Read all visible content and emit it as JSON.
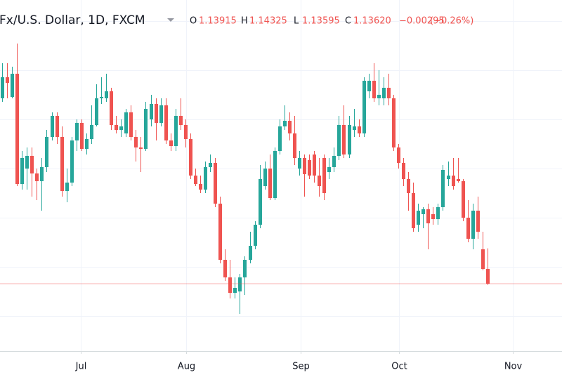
{
  "chart_data": {
    "type": "candlestick",
    "title": "Fx/U.S. Dollar, 1D, FXCM",
    "ohlc": [
      {
        "key": "O",
        "value": "1.13915"
      },
      {
        "key": "H",
        "value": "1.14325"
      },
      {
        "key": "L",
        "value": "1.13595"
      },
      {
        "key": "C",
        "value": "1.13620"
      }
    ],
    "change": "−0.00295",
    "change_pct": "(−0.26%)",
    "up_color": "#26a69a",
    "down_color": "#ef5350",
    "last_price_line": true,
    "ylim": [
      1.12276,
      1.19276
    ],
    "ygrid": [
      1.18856,
      1.17876,
      1.16896,
      1.15916,
      1.14936,
      1.13956,
      1.12976
    ],
    "xlim": [
      -0.43,
      113.05
    ],
    "xticks": [
      {
        "value": 15.9,
        "label": "Jul"
      },
      {
        "value": 37.2,
        "label": "Aug"
      },
      {
        "value": 60.3,
        "label": "Sep"
      },
      {
        "value": 80.1,
        "label": "Oct"
      },
      {
        "value": 103.1,
        "label": "Nov"
      }
    ],
    "categories": [
      null,
      null,
      null,
      null,
      null,
      null,
      null,
      null,
      null,
      null,
      null,
      null,
      null,
      null,
      null,
      null,
      null,
      null,
      null,
      null,
      null,
      null,
      null,
      null,
      null,
      null,
      null,
      null,
      null,
      null,
      null,
      null,
      null,
      null,
      null,
      null,
      null,
      null,
      null,
      null,
      null,
      null,
      null,
      null,
      null,
      null,
      null,
      null,
      null,
      null,
      null,
      null,
      null,
      null,
      null,
      null,
      null,
      null,
      null,
      null,
      null,
      null,
      null,
      null,
      null,
      null,
      null,
      null,
      null,
      null,
      null,
      null,
      null,
      null,
      null,
      null,
      null,
      null,
      null,
      null,
      null,
      null,
      null,
      null,
      null,
      null,
      null,
      null,
      null,
      null,
      null,
      null,
      null,
      null,
      null,
      null,
      null,
      null,
      null
    ],
    "open": [
      1.17316,
      1.17736,
      1.17344,
      1.17806,
      1.15608,
      1.15916,
      1.16168,
      1.15818,
      1.15664,
      1.15944,
      1.16546,
      1.16966,
      1.16546,
      1.15468,
      1.15636,
      1.16476,
      1.16826,
      1.16308,
      1.16504,
      1.16784,
      1.17316,
      1.17316,
      1.17456,
      1.16784,
      1.16686,
      1.16616,
      1.17036,
      1.16546,
      1.16336,
      1.16308,
      1.16896,
      1.17204,
      1.16826,
      1.17176,
      1.16476,
      1.16364,
      1.16966,
      1.16784,
      1.16504,
      1.15776,
      1.15608,
      1.15496,
      1.15944,
      1.16028,
      1.15216,
      1.14096,
      1.13746,
      1.13438,
      1.13466,
      1.13746,
      1.14096,
      1.14376,
      1.14796,
      1.15566,
      1.15916,
      1.15328,
      1.16266,
      1.16756,
      1.16868,
      1.16616,
      1.15916,
      1.16126,
      1.16084,
      1.16196,
      1.15776,
      1.16126,
      1.15846,
      1.15944,
      1.16168,
      1.16784,
      1.16196,
      1.16686,
      1.16756,
      1.16616,
      1.17456,
      1.17666,
      1.17316,
      1.17316,
      1.17526,
      1.17316,
      1.16336,
      1.16028,
      1.15706,
      1.15426,
      1.14796,
      1.15006,
      1.15104,
      1.15006,
      1.14908,
      1.15146,
      1.15706,
      1.15776,
      1.15706,
      1.15664,
      1.14936,
      1.14516,
      1.15076,
      1.14306,
      1.13915
    ],
    "high": [
      1.18016,
      1.18016,
      1.17946,
      1.18408,
      1.16266,
      1.16336,
      1.16336,
      1.15916,
      1.16126,
      1.16686,
      1.17036,
      1.17036,
      1.16756,
      1.15916,
      1.16546,
      1.16896,
      1.16896,
      1.16616,
      1.17176,
      1.17596,
      1.17736,
      1.17806,
      1.17526,
      1.16966,
      1.16896,
      1.17106,
      1.17176,
      1.16686,
      1.16546,
      1.17246,
      1.17386,
      1.17316,
      1.17316,
      1.17316,
      1.16616,
      1.17106,
      1.17316,
      1.16896,
      1.16616,
      1.15916,
      1.15776,
      1.16056,
      1.16196,
      1.16126,
      1.15356,
      1.14306,
      1.14096,
      1.13746,
      1.13816,
      1.14166,
      1.14656,
      1.14866,
      1.15986,
      1.16056,
      1.16196,
      1.16336,
      1.16896,
      1.17176,
      1.17036,
      1.16966,
      1.16266,
      1.16196,
      1.16196,
      1.16266,
      1.16126,
      1.16196,
      1.16126,
      1.16336,
      1.16966,
      1.17176,
      1.16966,
      1.17106,
      1.16896,
      1.17736,
      1.17806,
      1.18016,
      1.17876,
      1.17736,
      1.17806,
      1.17386,
      1.16406,
      1.16126,
      1.15846,
      1.15636,
      1.15216,
      1.15146,
      1.15216,
      1.15146,
      1.15216,
      1.15986,
      1.16056,
      1.16126,
      1.16126,
      1.15706,
      1.15286,
      1.15216,
      1.15356,
      1.14656,
      1.14325
    ],
    "low": [
      1.17246,
      1.17316,
      1.17316,
      1.15566,
      1.15496,
      1.15496,
      1.15356,
      1.15286,
      1.15076,
      1.15846,
      1.16476,
      1.16406,
      1.15356,
      1.15244,
      1.15566,
      1.16266,
      1.16266,
      1.16196,
      1.16406,
      1.16756,
      1.17204,
      1.17246,
      1.16686,
      1.16616,
      1.16546,
      1.16546,
      1.16476,
      1.16056,
      1.15846,
      1.16266,
      1.16756,
      1.16476,
      1.16756,
      1.16406,
      1.16266,
      1.16266,
      1.16686,
      1.16336,
      1.15706,
      1.15566,
      1.15426,
      1.15426,
      1.15846,
      1.15146,
      1.14026,
      1.13676,
      1.13326,
      1.13326,
      1.13018,
      1.13396,
      1.14026,
      1.14306,
      1.14726,
      1.15496,
      1.15286,
      1.15286,
      1.16196,
      1.16686,
      1.16476,
      1.15986,
      1.15776,
      1.15356,
      1.15706,
      1.15636,
      1.15356,
      1.15286,
      1.15706,
      1.15846,
      1.16084,
      1.16126,
      1.16126,
      1.16546,
      1.16546,
      1.16546,
      1.17316,
      1.17246,
      1.17176,
      1.17176,
      1.17176,
      1.16266,
      1.15916,
      1.15566,
      1.15076,
      1.14656,
      1.14656,
      1.14726,
      1.14306,
      1.14796,
      1.14796,
      1.15076,
      1.15566,
      1.15496,
      1.15636,
      1.14866,
      1.14446,
      1.14306,
      1.14516,
      1.13886,
      1.13595
    ],
    "close": [
      1.17736,
      1.17624,
      1.17806,
      1.15608,
      1.16126,
      1.16168,
      1.15818,
      1.15664,
      1.15944,
      1.16546,
      1.16966,
      1.16546,
      1.15468,
      1.15636,
      1.16476,
      1.16826,
      1.16308,
      1.16504,
      1.16784,
      1.17316,
      1.17344,
      1.17456,
      1.16784,
      1.16686,
      1.16756,
      1.17036,
      1.16546,
      1.16336,
      1.16308,
      1.17106,
      1.17204,
      1.16826,
      1.17176,
      1.16476,
      1.16364,
      1.16966,
      1.16784,
      1.16504,
      1.15776,
      1.15608,
      1.15496,
      1.15944,
      1.16028,
      1.15216,
      1.14096,
      1.13746,
      1.13438,
      1.13536,
      1.13746,
      1.14096,
      1.14376,
      1.14796,
      1.15706,
      1.15916,
      1.15328,
      1.16266,
      1.16756,
      1.16868,
      1.16616,
      1.16126,
      1.16126,
      1.15804,
      1.15776,
      1.15776,
      1.15566,
      1.15426,
      1.15944,
      1.16168,
      1.16784,
      1.16196,
      1.16784,
      1.16756,
      1.16616,
      1.17666,
      1.17666,
      1.17316,
      1.17386,
      1.17526,
      1.17316,
      1.16336,
      1.16028,
      1.15706,
      1.15426,
      1.14726,
      1.15076,
      1.15104,
      1.14824,
      1.14908,
      1.15146,
      1.15888,
      1.15776,
      1.15566,
      1.15664,
      1.14936,
      1.14516,
      1.15076,
      1.14656,
      1.13914,
      1.1362
    ]
  }
}
